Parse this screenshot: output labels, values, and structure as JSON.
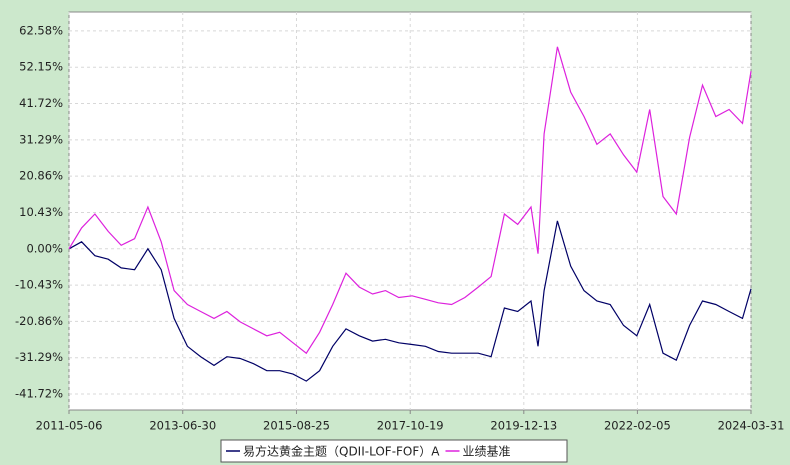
{
  "chart_data": {
    "type": "line",
    "x": [
      "2011-05-06",
      "2011-08-01",
      "2011-11-01",
      "2012-02-01",
      "2012-05-01",
      "2012-08-01",
      "2012-11-01",
      "2013-02-01",
      "2013-05-01",
      "2013-08-01",
      "2013-11-01",
      "2014-02-01",
      "2014-05-01",
      "2014-08-01",
      "2014-11-01",
      "2015-02-01",
      "2015-05-01",
      "2015-08-01",
      "2015-11-01",
      "2016-02-01",
      "2016-05-01",
      "2016-08-01",
      "2016-11-01",
      "2017-02-01",
      "2017-05-01",
      "2017-08-01",
      "2017-11-01",
      "2018-02-01",
      "2018-05-01",
      "2018-08-01",
      "2018-11-01",
      "2019-02-01",
      "2019-05-01",
      "2019-08-01",
      "2019-11-01",
      "2020-02-01",
      "2020-03-20",
      "2020-05-01",
      "2020-08-01",
      "2020-11-01",
      "2021-02-01",
      "2021-05-01",
      "2021-08-01",
      "2021-11-01",
      "2022-02-01",
      "2022-05-01",
      "2022-08-01",
      "2022-11-01",
      "2023-02-01",
      "2023-05-01",
      "2023-08-01",
      "2023-11-01",
      "2024-02-01",
      "2024-03-31"
    ],
    "series": [
      {
        "name": "易方达黄金主题（QDII-LOF-FOF）A",
        "color": "#000066",
        "values": [
          0,
          2,
          -2,
          -3,
          -5.5,
          -6,
          0,
          -6,
          -20,
          -28,
          -31,
          -33.5,
          -31,
          -31.5,
          -33,
          -35,
          -35,
          -36,
          -38,
          -35,
          -28,
          -23,
          -25,
          -26.5,
          -26,
          -27,
          -27.5,
          -28,
          -29.5,
          -30,
          -30,
          -30,
          -31,
          -17,
          -18,
          -15,
          -28,
          -12,
          8,
          -5,
          -12,
          -15,
          -16,
          -22,
          -25,
          -16,
          -30,
          -32,
          -22,
          -15,
          -16,
          -18,
          -20,
          -11.5
        ]
      },
      {
        "name": "业绩基准",
        "color": "#dd22dd",
        "values": [
          0,
          6,
          10,
          5,
          1,
          2.9,
          12,
          2,
          -12,
          -16,
          -18,
          -20,
          -18,
          -21,
          -23,
          -25,
          -24,
          -27,
          -30,
          -24,
          -16,
          -7,
          -11,
          -13,
          -12,
          -14,
          -13.5,
          -14.5,
          -15.5,
          -16,
          -14,
          -11,
          -8,
          10,
          7,
          12,
          -1.4,
          33,
          58,
          45,
          38,
          30,
          33,
          27,
          22,
          40,
          15,
          10,
          32,
          47,
          38,
          40,
          36,
          51
        ]
      }
    ],
    "xlim": [
      "2011-05-06",
      "2024-03-31"
    ],
    "xticks": [
      "2011-05-06",
      "2013-06-30",
      "2015-08-25",
      "2017-10-19",
      "2019-12-13",
      "2022-02-05",
      "2024-03-31"
    ],
    "ylim": [
      -46.3,
      68.0
    ],
    "yticks": [
      {
        "value": 62.58,
        "label": "62.58%"
      },
      {
        "value": 52.15,
        "label": "52.15%"
      },
      {
        "value": 41.72,
        "label": "41.72%"
      },
      {
        "value": 31.29,
        "label": "31.29%"
      },
      {
        "value": 20.86,
        "label": "20.86%"
      },
      {
        "value": 10.43,
        "label": "10.43%"
      },
      {
        "value": 0,
        "label": "0.00%"
      },
      {
        "value": -10.43,
        "label": "-10.43%"
      },
      {
        "value": -20.86,
        "label": "-20.86%"
      },
      {
        "value": -31.29,
        "label": "-31.29%"
      },
      {
        "value": -41.72,
        "label": "-41.72%"
      }
    ],
    "grid": true
  }
}
